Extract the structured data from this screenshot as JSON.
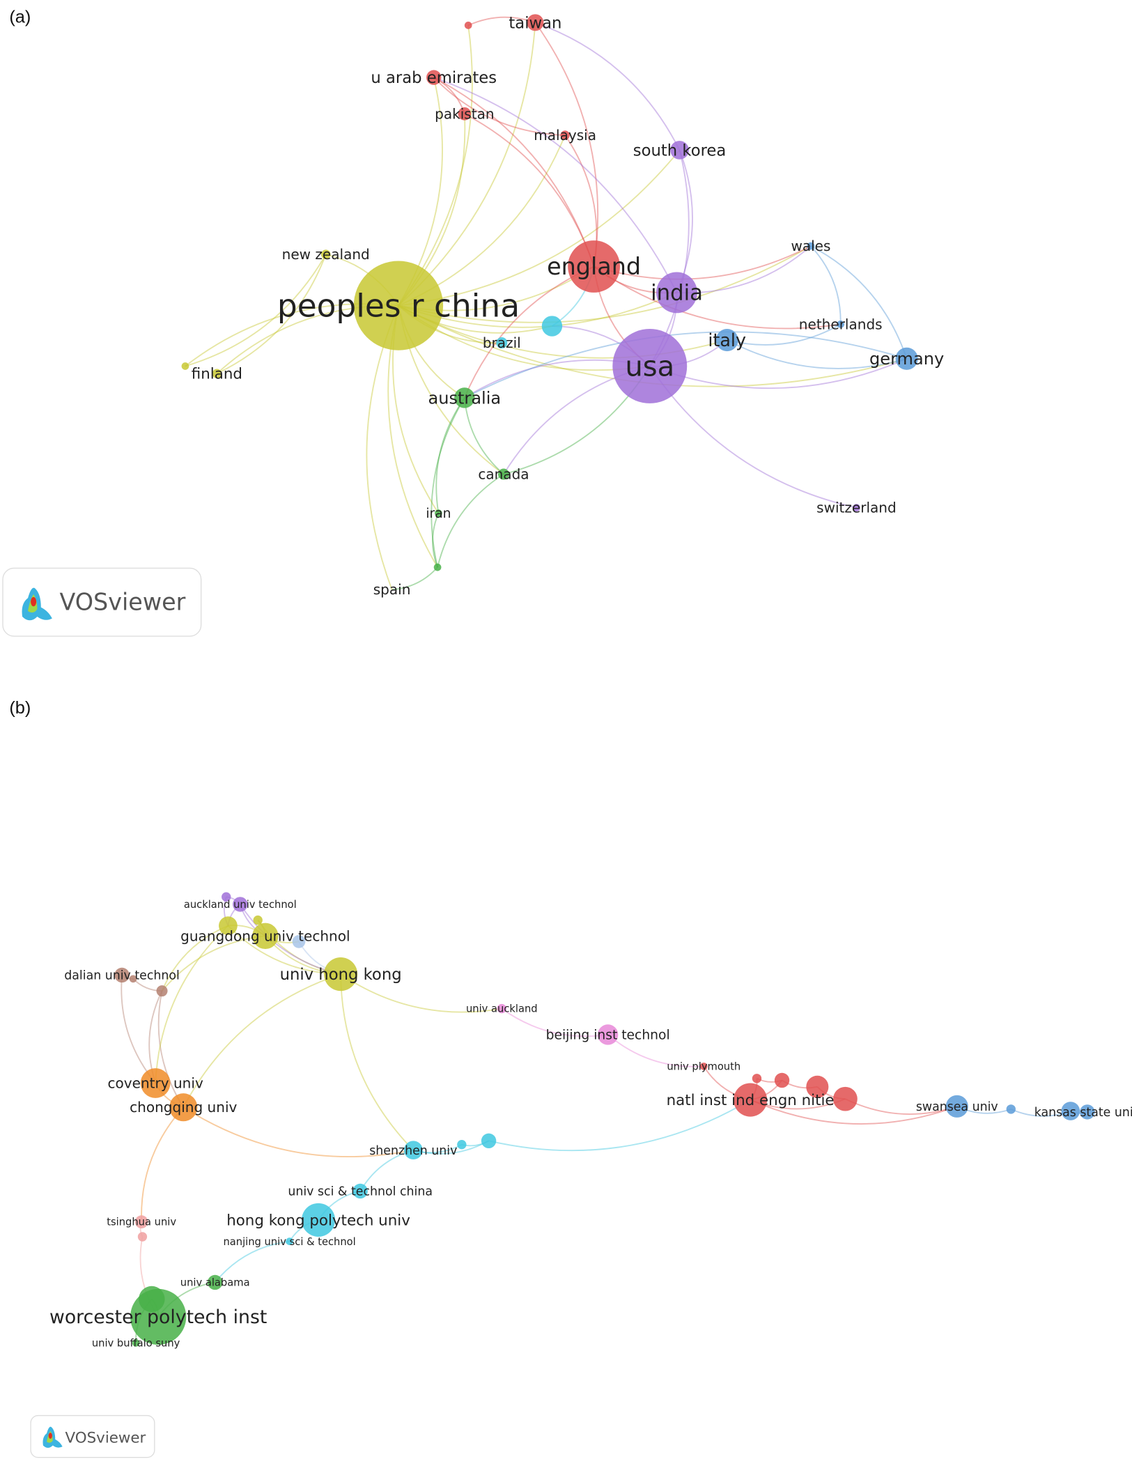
{
  "panels": [
    {
      "tag": "(a)",
      "logo_text": "VOSviewer",
      "nodes": [
        {
          "label": "peoples r china",
          "color": "#c8c832"
        },
        {
          "label": "england",
          "color": "#e05050"
        },
        {
          "label": "india",
          "color": "#a070d8"
        },
        {
          "label": "usa",
          "color": "#a070d8"
        },
        {
          "label": "italy",
          "color": "#5a9bd8"
        },
        {
          "label": "germany",
          "color": "#5a9bd8"
        },
        {
          "label": "netherlands",
          "color": "#5a9bd8"
        },
        {
          "label": "wales",
          "color": "#5a9bd8"
        },
        {
          "label": "switzerland",
          "color": "#a070d8"
        },
        {
          "label": "south korea",
          "color": "#a070d8"
        },
        {
          "label": "malaysia",
          "color": "#e05050"
        },
        {
          "label": "pakistan",
          "color": "#e05050"
        },
        {
          "label": "u arab emirates",
          "color": "#e05050"
        },
        {
          "label": "taiwan",
          "color": "#e05050"
        },
        {
          "label": "",
          "color": "#e05050"
        },
        {
          "label": "new zealand",
          "color": "#c8c832"
        },
        {
          "label": "finland",
          "color": "#c8c832"
        },
        {
          "label": "",
          "color": "#c8c832"
        },
        {
          "label": "brazil",
          "color": "#40c8e0"
        },
        {
          "label": "",
          "color": "#40c8e0"
        },
        {
          "label": "australia",
          "color": "#48b048"
        },
        {
          "label": "canada",
          "color": "#48b048"
        },
        {
          "label": "iran",
          "color": "#48b048"
        },
        {
          "label": "spain",
          "color": "#48b048"
        },
        {
          "label": "",
          "color": "#48b048"
        }
      ],
      "edges": [
        [
          0,
          1
        ],
        [
          0,
          2
        ],
        [
          0,
          3
        ],
        [
          0,
          4
        ],
        [
          0,
          5
        ],
        [
          0,
          9
        ],
        [
          0,
          10
        ],
        [
          0,
          11
        ],
        [
          0,
          12
        ],
        [
          0,
          13
        ],
        [
          0,
          14
        ],
        [
          0,
          15
        ],
        [
          0,
          16
        ],
        [
          0,
          17
        ],
        [
          0,
          18
        ],
        [
          0,
          19
        ],
        [
          0,
          20
        ],
        [
          0,
          21
        ],
        [
          0,
          22
        ],
        [
          0,
          23
        ],
        [
          0,
          24
        ],
        [
          0,
          7
        ],
        [
          1,
          3
        ],
        [
          1,
          2
        ],
        [
          1,
          13
        ],
        [
          1,
          11
        ],
        [
          1,
          12
        ],
        [
          1,
          10
        ],
        [
          1,
          20
        ],
        [
          1,
          7
        ],
        [
          1,
          6
        ],
        [
          3,
          2
        ],
        [
          3,
          4
        ],
        [
          3,
          5
        ],
        [
          3,
          9
        ],
        [
          3,
          8
        ],
        [
          3,
          19
        ],
        [
          3,
          20
        ],
        [
          3,
          21
        ],
        [
          2,
          9
        ],
        [
          2,
          7
        ],
        [
          4,
          5
        ],
        [
          4,
          6
        ],
        [
          5,
          7
        ],
        [
          5,
          20
        ],
        [
          6,
          7
        ],
        [
          20,
          21
        ],
        [
          20,
          22
        ],
        [
          20,
          24
        ],
        [
          21,
          24
        ],
        [
          22,
          24
        ],
        [
          16,
          15
        ],
        [
          17,
          15
        ],
        [
          11,
          12
        ],
        [
          13,
          14
        ],
        [
          12,
          10
        ],
        [
          19,
          1
        ],
        [
          2,
          12
        ],
        [
          9,
          13
        ],
        [
          21,
          3
        ],
        [
          23,
          24
        ]
      ]
    },
    {
      "tag": "(b)",
      "logo_text": "VOSviewer",
      "nodes": [
        {
          "label": "auckland univ technol",
          "color": "#a070d8"
        },
        {
          "label": "",
          "color": "#a070d8"
        },
        {
          "label": "guangdong univ technol",
          "color": "#c8c832"
        },
        {
          "label": "",
          "color": "#c8c832"
        },
        {
          "label": "",
          "color": "#c8c832"
        },
        {
          "label": "",
          "color": "#a8c4e8"
        },
        {
          "label": "univ hong kong",
          "color": "#c8c832"
        },
        {
          "label": "dalian univ technol",
          "color": "#b48070"
        },
        {
          "label": "",
          "color": "#b48070"
        },
        {
          "label": "",
          "color": "#b48070"
        },
        {
          "label": "univ auckland",
          "color": "#e888d8"
        },
        {
          "label": "beijing inst technol",
          "color": "#e888d8"
        },
        {
          "label": "univ plymouth",
          "color": "#e05050"
        },
        {
          "label": "natl inst ind engn nitie",
          "color": "#e05050"
        },
        {
          "label": "",
          "color": "#e05050"
        },
        {
          "label": "",
          "color": "#e05050"
        },
        {
          "label": "",
          "color": "#e05050"
        },
        {
          "label": "",
          "color": "#e05050"
        },
        {
          "label": "swansea univ",
          "color": "#5a9bd8"
        },
        {
          "label": "",
          "color": "#5a9bd8"
        },
        {
          "label": "",
          "color": "#5a9bd8"
        },
        {
          "label": "kansas state univ",
          "color": "#5a9bd8"
        },
        {
          "label": "coventry univ",
          "color": "#f08c28"
        },
        {
          "label": "chongqing univ",
          "color": "#f08c28"
        },
        {
          "label": "shenzhen univ",
          "color": "#40c8e0"
        },
        {
          "label": "",
          "color": "#40c8e0"
        },
        {
          "label": "",
          "color": "#40c8e0"
        },
        {
          "label": "univ sci & technol china",
          "color": "#40c8e0"
        },
        {
          "label": "hong kong polytech univ",
          "color": "#40c8e0"
        },
        {
          "label": "nanjing univ sci & technol",
          "color": "#40c8e0"
        },
        {
          "label": "tsinghua univ",
          "color": "#f0a0a0"
        },
        {
          "label": "",
          "color": "#f0a0a0"
        },
        {
          "label": "univ alabama",
          "color": "#48b048"
        },
        {
          "label": "worcester polytech inst",
          "color": "#48b048"
        },
        {
          "label": "",
          "color": "#48b048"
        },
        {
          "label": "univ buffalo suny",
          "color": "#48b048"
        }
      ],
      "edges": [
        [
          0,
          1
        ],
        [
          0,
          2
        ],
        [
          0,
          3
        ],
        [
          1,
          3
        ],
        [
          2,
          3
        ],
        [
          2,
          4
        ],
        [
          2,
          5
        ],
        [
          2,
          6
        ],
        [
          3,
          6
        ],
        [
          4,
          6
        ],
        [
          5,
          6
        ],
        [
          0,
          6
        ],
        [
          3,
          9
        ],
        [
          2,
          9
        ],
        [
          7,
          8
        ],
        [
          8,
          9
        ],
        [
          9,
          22
        ],
        [
          9,
          23
        ],
        [
          7,
          22
        ],
        [
          3,
          22
        ],
        [
          6,
          23
        ],
        [
          6,
          10
        ],
        [
          10,
          11
        ],
        [
          11,
          12
        ],
        [
          12,
          13
        ],
        [
          13,
          14
        ],
        [
          13,
          15
        ],
        [
          14,
          15
        ],
        [
          15,
          16
        ],
        [
          16,
          17
        ],
        [
          13,
          17
        ],
        [
          17,
          18
        ],
        [
          13,
          18
        ],
        [
          18,
          19
        ],
        [
          19,
          20
        ],
        [
          20,
          21
        ],
        [
          6,
          24
        ],
        [
          23,
          24
        ],
        [
          24,
          25
        ],
        [
          25,
          26
        ],
        [
          24,
          26
        ],
        [
          26,
          13
        ],
        [
          24,
          27
        ],
        [
          27,
          28
        ],
        [
          28,
          29
        ],
        [
          29,
          32
        ],
        [
          32,
          33
        ],
        [
          33,
          34
        ],
        [
          34,
          35
        ],
        [
          23,
          30
        ],
        [
          30,
          31
        ],
        [
          31,
          33
        ],
        [
          22,
          23
        ]
      ]
    }
  ]
}
